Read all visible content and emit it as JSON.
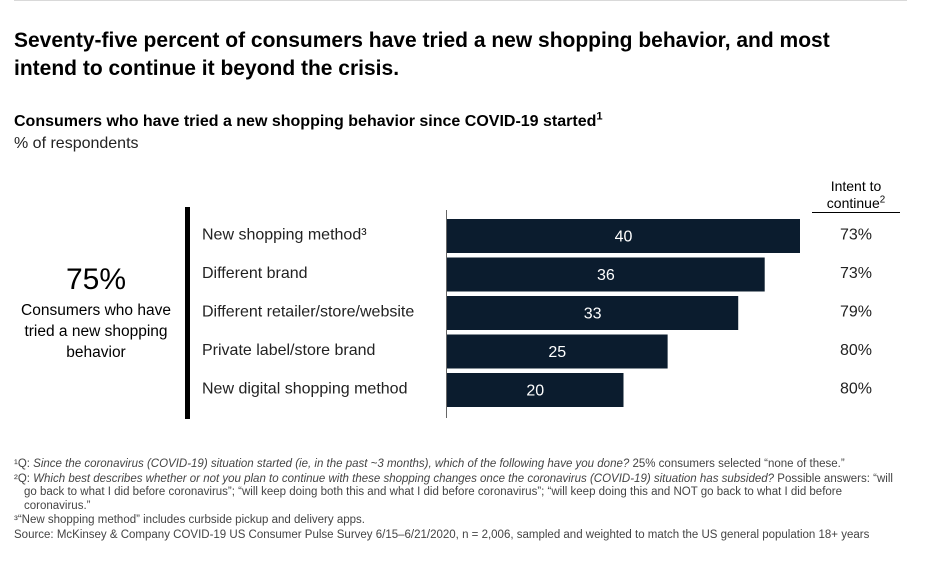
{
  "headline": "Seventy-five percent of consumers have tried a new shopping behavior, and most intend to continue it beyond the crisis.",
  "subtitle": "Consumers who have tried a new shopping behavior since COVID-19 started",
  "subtitle_sup": "1",
  "units": "% of respondents",
  "big_stat": {
    "value": "75%",
    "label": "Consumers who have tried a new shopping behavior"
  },
  "intent_header": {
    "line1": "Intent to",
    "line2": "continue",
    "sup": "2"
  },
  "chart_data": {
    "type": "bar",
    "orientation": "horizontal",
    "title": "Consumers who have tried a new shopping behavior since COVID-19 started",
    "ylabel": "% of respondents",
    "xlim": [
      0,
      40
    ],
    "grid": false,
    "bar_color": "#0b1c2e",
    "categories": [
      "New shopping method³",
      "Different brand",
      "Different retailer/store/website",
      "Private label/store brand",
      "New digital shopping method"
    ],
    "values": [
      40,
      36,
      33,
      25,
      20
    ],
    "intent_to_continue": [
      "73%",
      "73%",
      "79%",
      "80%",
      "80%"
    ]
  },
  "footnotes": [
    {
      "prefix": "¹Q: ",
      "question": "Since the coronavirus (COVID-19) situation started (ie, in the past ~3 months), which of the following have you done?",
      "rest": " 25% consumers selected “none of these.”"
    },
    {
      "prefix": "²Q: ",
      "question": "Which best describes whether or not you plan to continue with these shopping changes once the coronavirus (COVID-19) situation has subsided?",
      "rest": " Possible answers: “will go back to what I did before coronavirus”; “will keep doing both this and what I did before coronavirus”; “will keep doing this and NOT go back to what I did before coronavirus.”"
    },
    {
      "prefix": "³",
      "question": "",
      "rest": "“New shopping method” includes curbside pickup and delivery apps."
    }
  ],
  "source": "Source: McKinsey & Company COVID-19 US Consumer Pulse Survey 6/15–6/21/2020, n = 2,006, sampled and weighted to match the US general population 18+ years"
}
